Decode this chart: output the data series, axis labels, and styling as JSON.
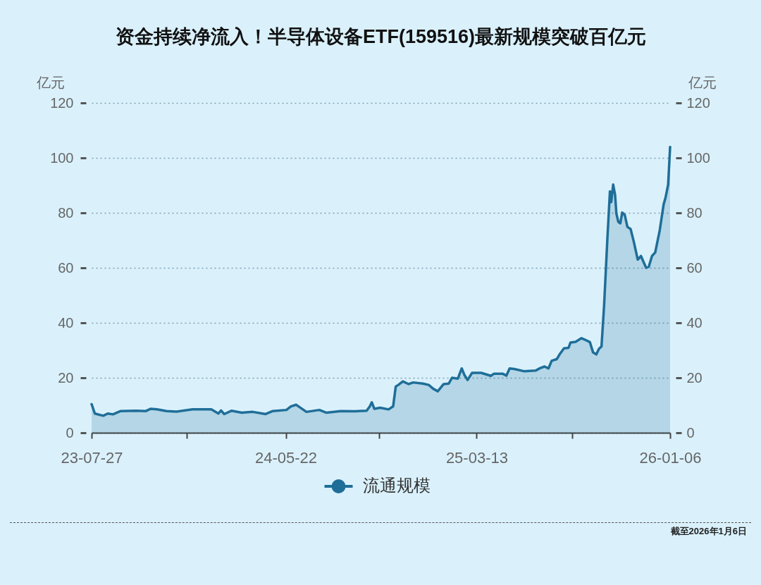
{
  "chart_data": {
    "type": "area",
    "title": "资金持续净流入！半导体设备ETF(159516)最新规模突破百亿元",
    "ylabel": "亿元",
    "y2label": "亿元",
    "x": [
      "2023-07-27",
      "2023-08-01",
      "2023-08-14",
      "2023-08-21",
      "2023-08-29",
      "2023-09-10",
      "2023-10-04",
      "2023-10-19",
      "2023-10-26",
      "2023-11-05",
      "2023-11-20",
      "2023-12-05",
      "2023-12-30",
      "2024-01-28",
      "2024-02-08",
      "2024-02-12",
      "2024-02-17",
      "2024-02-28",
      "2024-03-15",
      "2024-04-01",
      "2024-04-21",
      "2024-05-02",
      "2024-05-23",
      "2024-05-30",
      "2024-06-07",
      "2024-06-12",
      "2024-06-23",
      "2024-07-13",
      "2024-07-24",
      "2024-08-15",
      "2024-09-05",
      "2024-09-24",
      "2024-09-29",
      "2024-10-02",
      "2024-10-06",
      "2024-10-15",
      "2024-10-28",
      "2024-11-04",
      "2024-11-08",
      "2024-11-12",
      "2024-11-19",
      "2024-11-28",
      "2024-12-05",
      "2024-12-20",
      "2024-12-29",
      "2025-01-05",
      "2025-01-12",
      "2025-01-21",
      "2025-01-29",
      "2025-02-03",
      "2025-02-12",
      "2025-02-18",
      "2025-02-22",
      "2025-02-27",
      "2025-03-06",
      "2025-03-20",
      "2025-04-04",
      "2025-04-09",
      "2025-04-22",
      "2025-04-28",
      "2025-05-03",
      "2025-05-10",
      "2025-05-25",
      "2025-06-12",
      "2025-06-19",
      "2025-06-26",
      "2025-07-02",
      "2025-07-07",
      "2025-07-15",
      "2025-07-20",
      "2025-07-26",
      "2025-08-02",
      "2025-08-05",
      "2025-08-13",
      "2025-08-22",
      "2025-08-27",
      "2025-09-04",
      "2025-09-09",
      "2025-09-14",
      "2025-09-18",
      "2025-09-22",
      "2025-09-26",
      "2025-10-01",
      "2025-10-05",
      "2025-10-07",
      "2025-10-10",
      "2025-10-13",
      "2025-10-15",
      "2025-10-18",
      "2025-10-21",
      "2025-10-24",
      "2025-10-28",
      "2025-11-01",
      "2025-11-06",
      "2025-11-11",
      "2025-11-17",
      "2025-11-22",
      "2025-11-26",
      "2025-11-30",
      "2025-12-04",
      "2025-12-09",
      "2025-12-14",
      "2025-12-21",
      "2025-12-27",
      "2025-12-30",
      "2026-01-03",
      "2026-01-06"
    ],
    "series": [
      {
        "name": "流通规模",
        "color": "#1f6e98",
        "values": [
          10.4,
          7.0,
          6.2,
          7.0,
          6.7,
          7.9,
          8.0,
          7.9,
          8.7,
          8.5,
          7.9,
          7.7,
          8.5,
          8.5,
          7.0,
          8.1,
          6.8,
          8.0,
          7.3,
          7.6,
          6.8,
          7.9,
          8.3,
          9.6,
          10.2,
          9.4,
          7.6,
          8.3,
          7.3,
          7.9,
          7.8,
          8.0,
          9.6,
          11.1,
          8.7,
          9.1,
          8.5,
          9.6,
          16.8,
          17.4,
          18.7,
          17.7,
          18.3,
          17.9,
          17.4,
          16.0,
          15.1,
          17.7,
          17.9,
          20.0,
          19.7,
          23.4,
          21.1,
          19.2,
          21.8,
          21.8,
          20.7,
          21.5,
          21.5,
          20.8,
          23.4,
          23.2,
          22.4,
          22.6,
          23.5,
          24.1,
          23.4,
          26.2,
          26.8,
          28.8,
          30.7,
          30.9,
          32.8,
          33.1,
          34.4,
          33.9,
          33.0,
          29.2,
          28.5,
          30.5,
          31.4,
          46.3,
          70.3,
          87.8,
          83.9,
          90.3,
          86.5,
          79.7,
          76.7,
          76.2,
          80.1,
          79.2,
          74.9,
          74.1,
          69.4,
          63.0,
          64.3,
          62.1,
          60.0,
          60.4,
          64.3,
          65.6,
          73.7,
          83.1,
          85.6,
          90.3,
          104.0
        ]
      }
    ],
    "xlim": [
      "2023-07-27",
      "2026-01-06"
    ],
    "xticks": [
      {
        "value": "2023-07-27",
        "label": "23-07-27"
      },
      {
        "value": "2023-12-21",
        "label": null
      },
      {
        "value": "2024-05-22",
        "label": "24-05-22"
      },
      {
        "value": "2024-10-13",
        "label": null
      },
      {
        "value": "2025-03-13",
        "label": "25-03-13"
      },
      {
        "value": "2025-08-08",
        "label": null
      },
      {
        "value": "2026-01-06",
        "label": "26-01-06"
      }
    ],
    "ylim": [
      0,
      120
    ],
    "yticks": [
      0,
      20,
      40,
      60,
      80,
      100,
      120
    ],
    "y2lim": [
      0,
      120
    ],
    "y2ticks": [
      0,
      20,
      40,
      60,
      80,
      100,
      120
    ],
    "grid": "y",
    "legend": "bottom",
    "annotations": [
      "截至2026年1月6日"
    ]
  }
}
